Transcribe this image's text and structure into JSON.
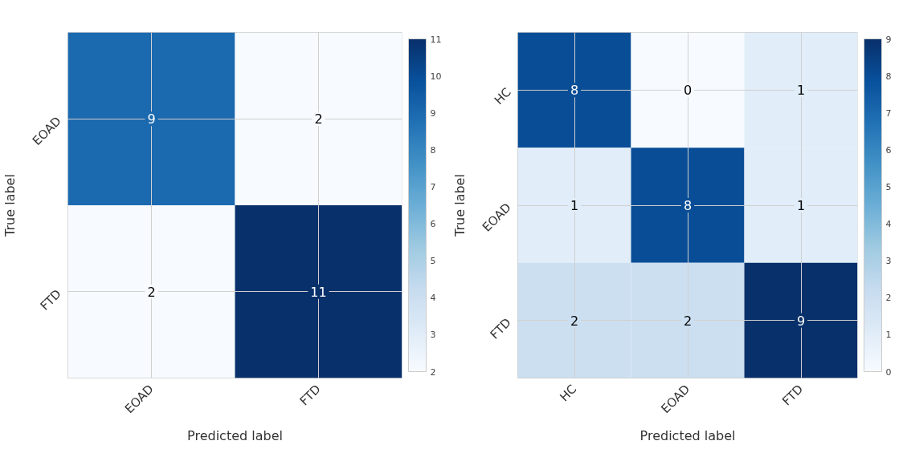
{
  "chart_data": [
    {
      "type": "heatmap",
      "xlabel": "Predicted label",
      "ylabel": "True label",
      "categories": [
        "EOAD",
        "FTD"
      ],
      "y_categories": [
        "EOAD",
        "FTD"
      ],
      "cells": [
        [
          9,
          2
        ],
        [
          2,
          11
        ]
      ],
      "clim": [
        2,
        11
      ],
      "cticks": [
        2,
        3,
        4,
        5,
        6,
        7,
        8,
        9,
        10,
        11
      ],
      "data_labels": true,
      "grid": true
    },
    {
      "type": "heatmap",
      "xlabel": "Predicted label",
      "ylabel": "True label",
      "categories": [
        "HC",
        "EOAD",
        "FTD"
      ],
      "y_categories": [
        "HC",
        "EOAD",
        "FTD"
      ],
      "cells": [
        [
          8,
          0,
          1
        ],
        [
          1,
          8,
          1
        ],
        [
          2,
          2,
          9
        ]
      ],
      "clim": [
        0,
        9
      ],
      "cticks": [
        0,
        1,
        2,
        3,
        4,
        5,
        6,
        7,
        8,
        9
      ],
      "data_labels": true,
      "grid": true
    }
  ]
}
